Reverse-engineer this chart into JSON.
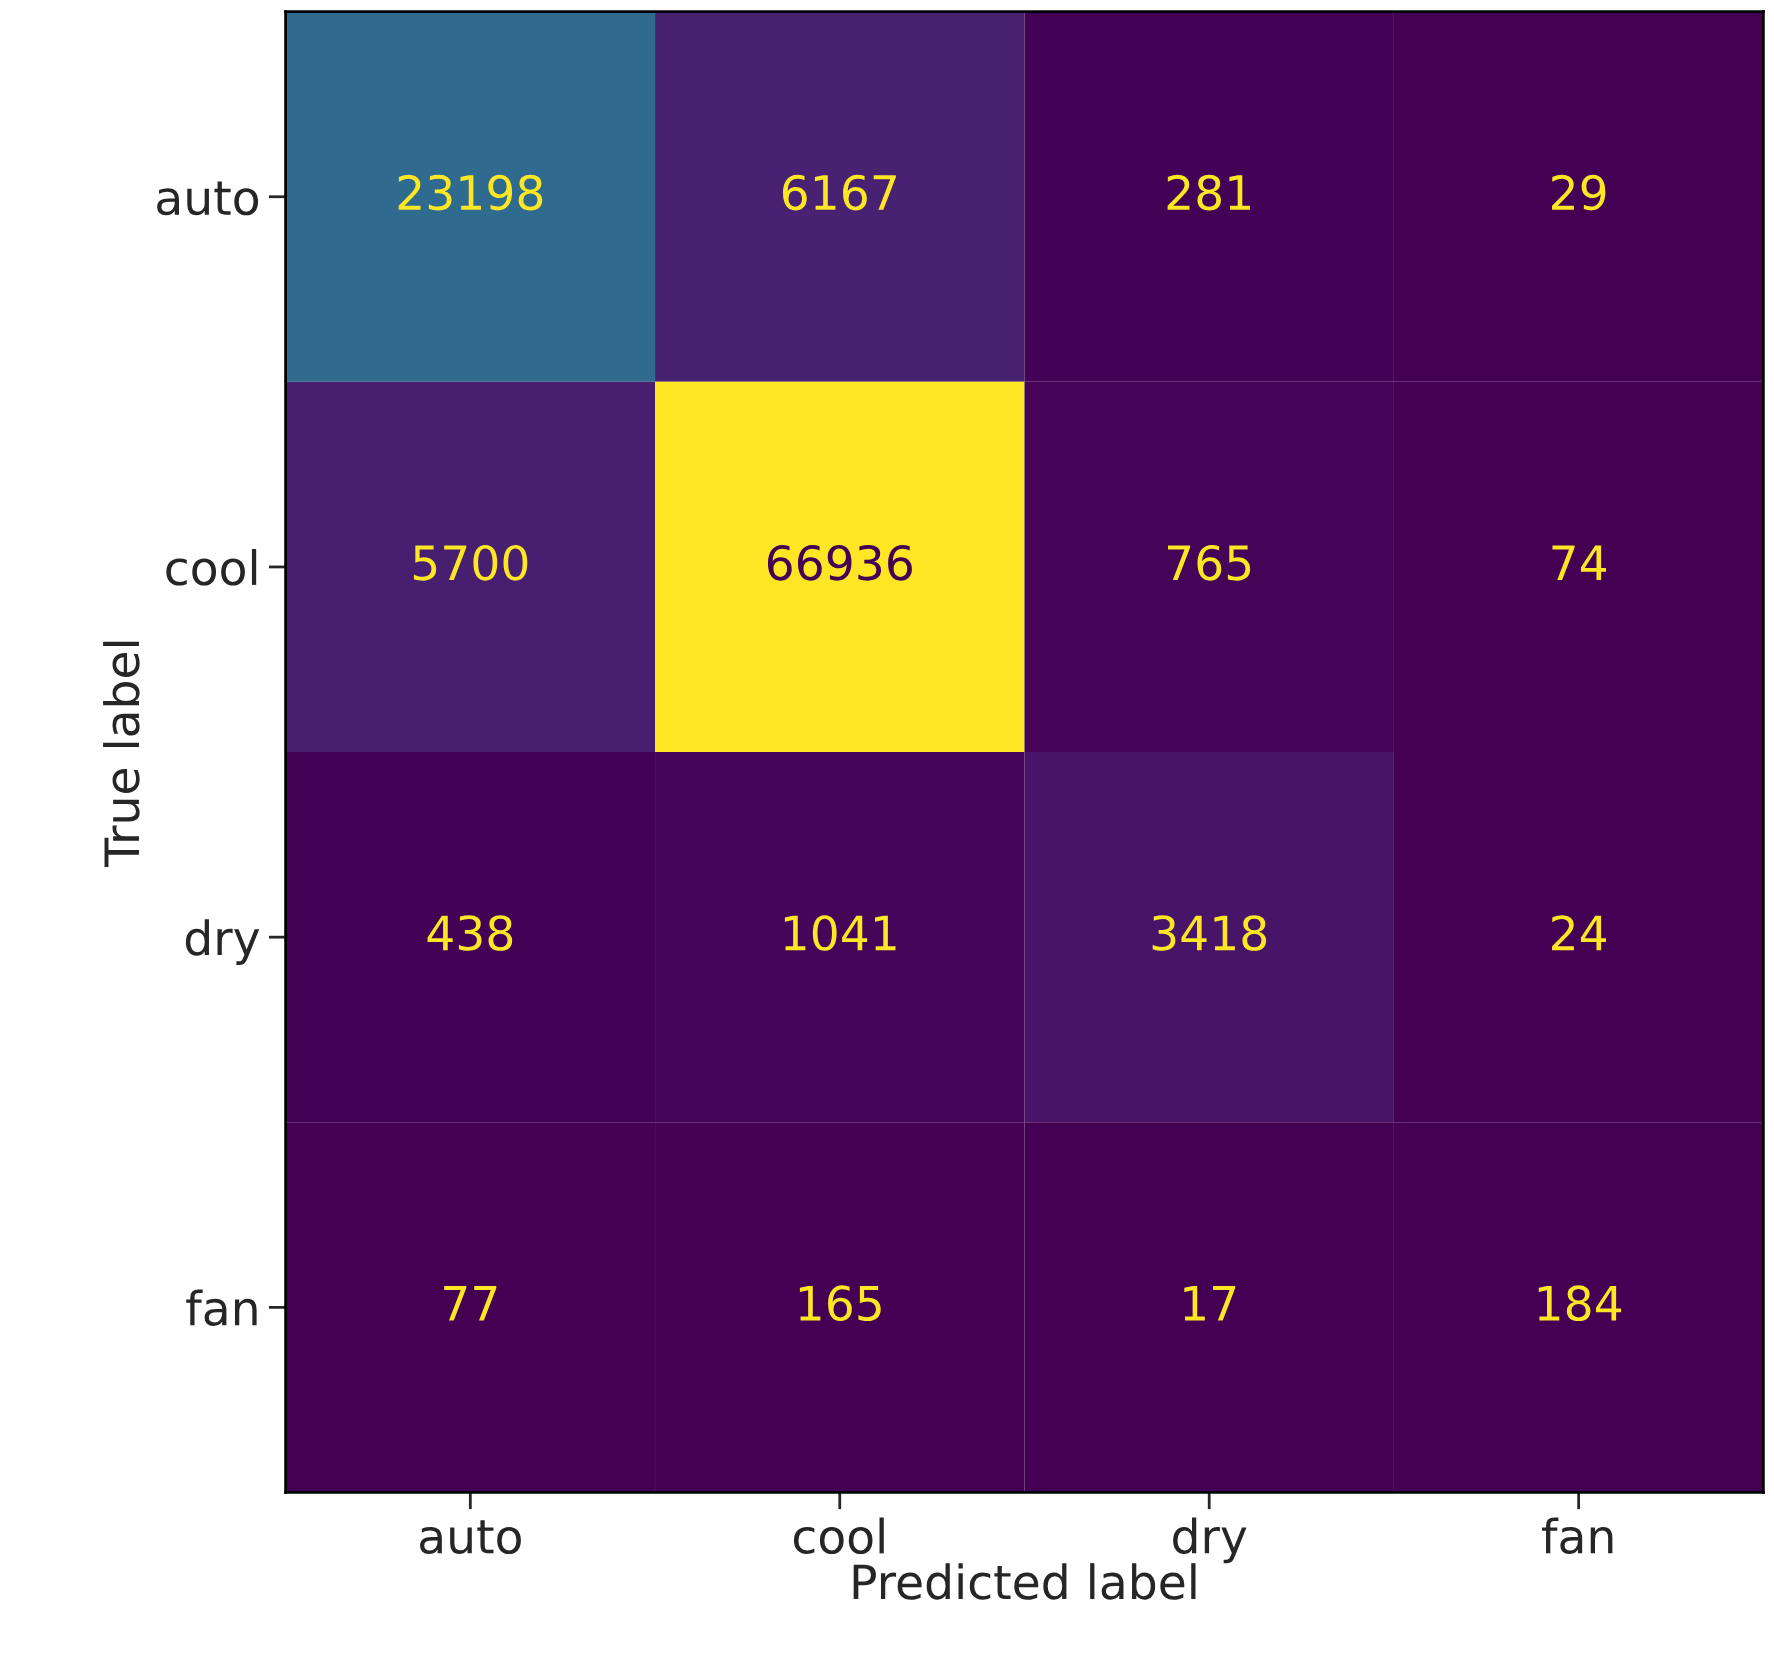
{
  "chart_data": {
    "type": "heatmap",
    "xlabel": "Predicted label",
    "ylabel": "True label",
    "categories": [
      "auto",
      "cool",
      "dry",
      "fan"
    ],
    "y_categories": [
      "auto",
      "cool",
      "dry",
      "fan"
    ],
    "cells": [
      [
        23198,
        6167,
        281,
        29
      ],
      [
        5700,
        66936,
        765,
        74
      ],
      [
        438,
        1041,
        3418,
        24
      ],
      [
        77,
        165,
        17,
        184
      ]
    ],
    "data_labels": true
  }
}
